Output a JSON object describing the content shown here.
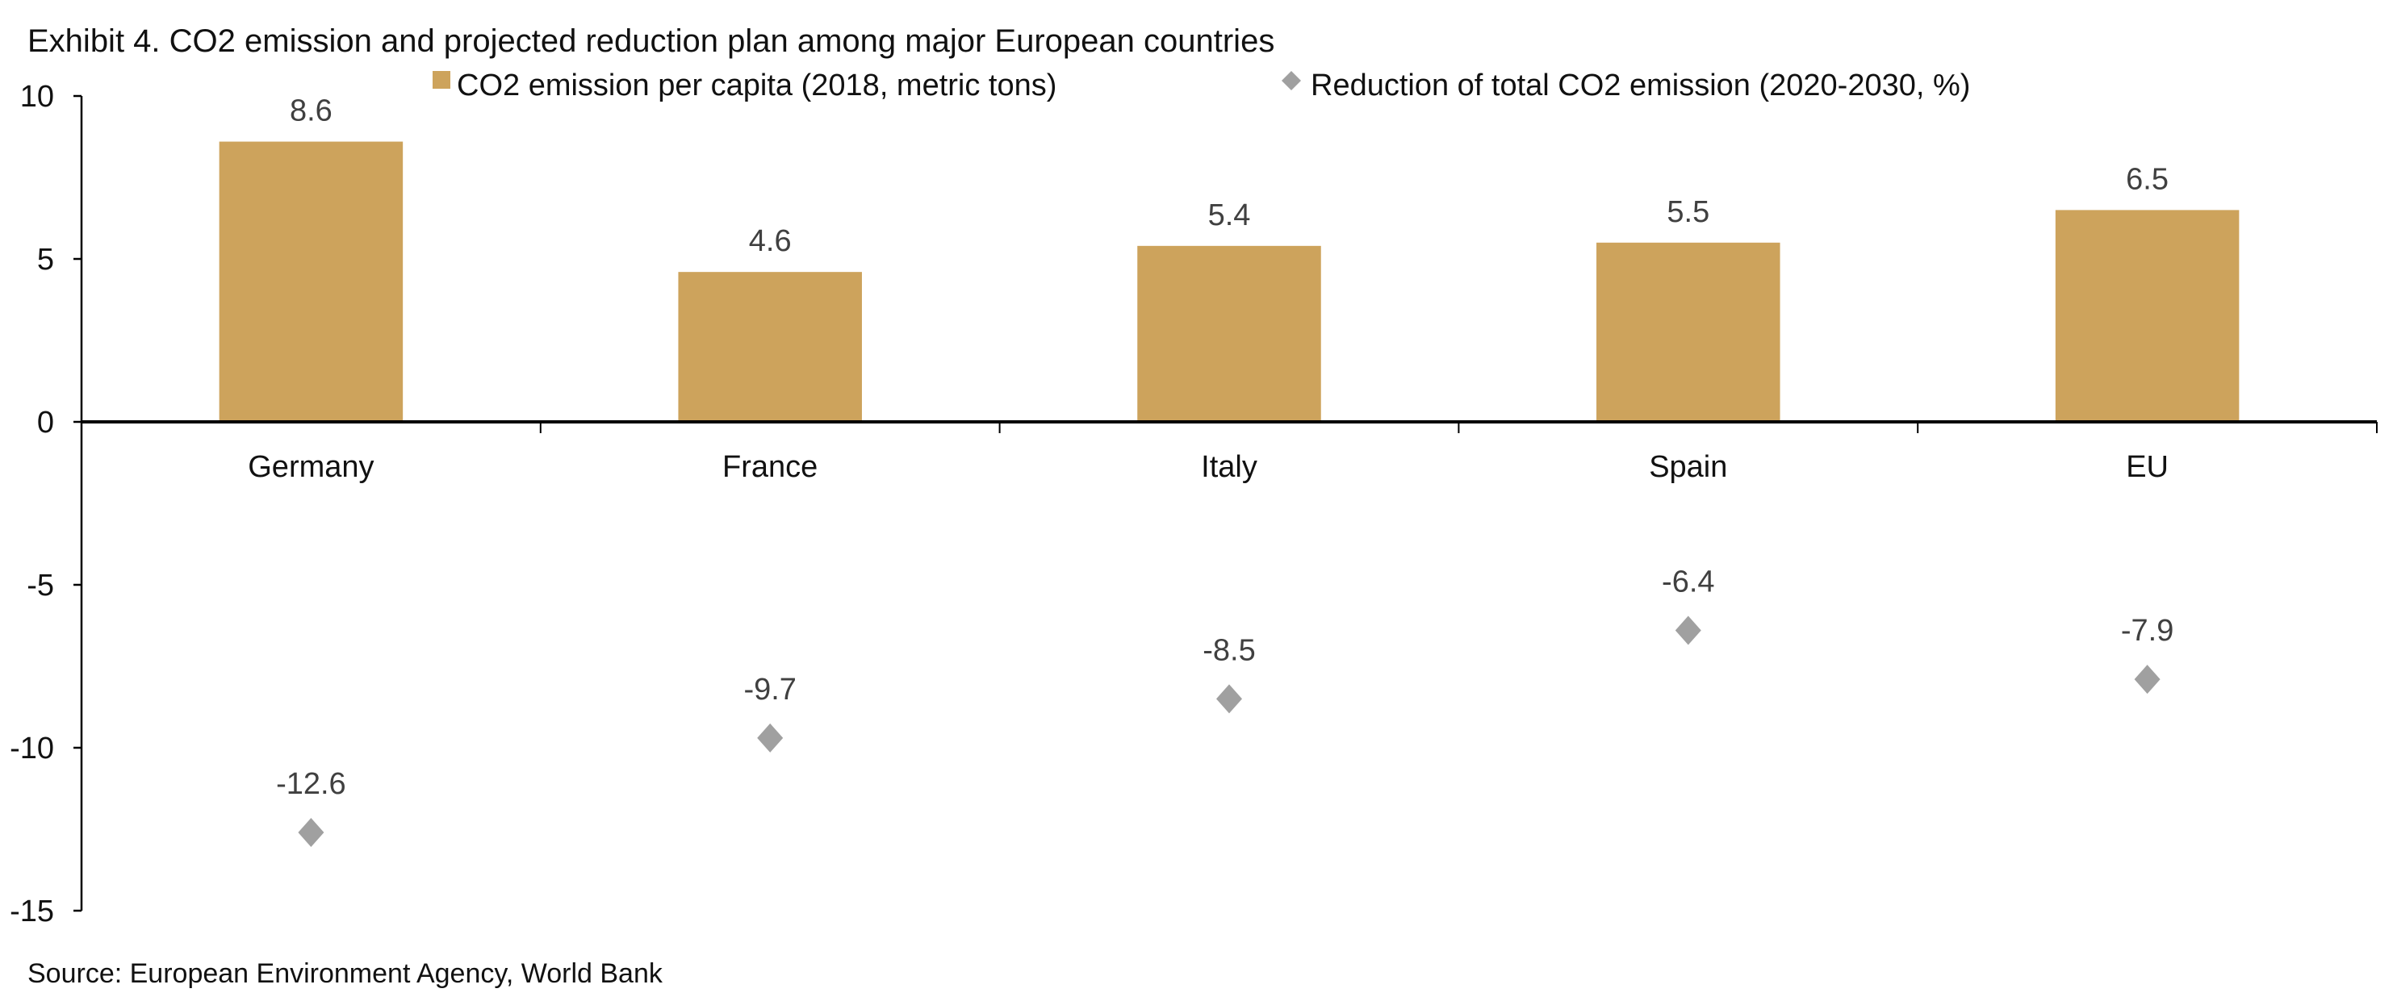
{
  "chart_data": {
    "type": "bar",
    "title": "Exhibit 4. CO2 emission and projected reduction plan among major European countries",
    "source": "Source: European Environment Agency, World Bank",
    "categories": [
      "Germany",
      "France",
      "Italy",
      "Spain",
      "EU"
    ],
    "ylim": [
      -15,
      10
    ],
    "yticks": [
      "10",
      "5",
      "0",
      "-5",
      "-10",
      "-15"
    ],
    "ytick_values": [
      10,
      5,
      0,
      -5,
      -10,
      -15
    ],
    "grid": false,
    "legend_placement": "top",
    "series": [
      {
        "name": "CO2 emission per capita (2018, metric tons)",
        "mark": "bar",
        "color": "#CDA35C",
        "values": [
          8.6,
          4.6,
          5.4,
          5.5,
          6.5
        ],
        "labels": [
          "8.6",
          "4.6",
          "5.4",
          "5.5",
          "6.5"
        ]
      },
      {
        "name": "Reduction of total CO2 emission (2020-2030, %)",
        "mark": "diamond",
        "color": "#A0A0A0",
        "values": [
          -12.6,
          -9.7,
          -8.5,
          -6.4,
          -7.9
        ],
        "labels": [
          "-12.6",
          "-9.7",
          "-8.5",
          "-6.4",
          "-7.9"
        ]
      }
    ]
  }
}
